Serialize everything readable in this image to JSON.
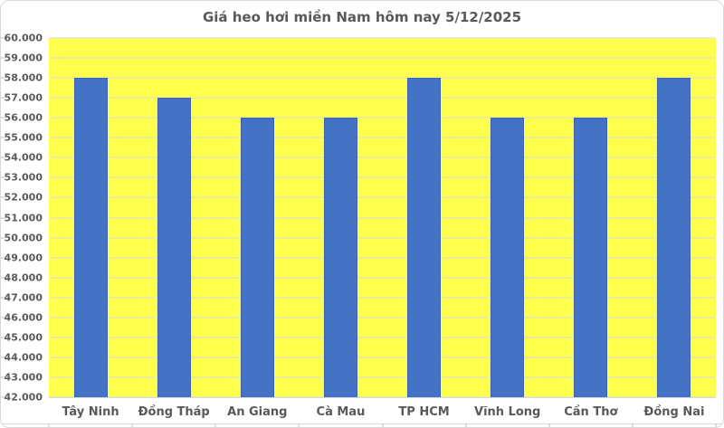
{
  "chart_data": {
    "type": "bar",
    "title": "Giá heo hơi miền Nam hôm nay 5/12/2025",
    "categories": [
      "Tây Ninh",
      "Đồng Tháp",
      "An Giang",
      "Cà Mau",
      "TP HCM",
      "Vĩnh Long",
      "Cần Thơ",
      "Đồng Nai"
    ],
    "values": [
      58000,
      57000,
      56000,
      56000,
      58000,
      56000,
      56000,
      58000
    ],
    "xlabel": "",
    "ylabel": "",
    "ylim": [
      42000,
      60000
    ],
    "ytick_step": 1000,
    "ytick_labels": [
      "60.000",
      "59.000",
      "58.000",
      "57.000",
      "56.000",
      "55.000",
      "54.000",
      "53.000",
      "52.000",
      "51.000",
      "50.000",
      "49.000",
      "48.000",
      "47.000",
      "46.000",
      "45.000",
      "44.000",
      "43.000",
      "42.000"
    ],
    "grid": true,
    "legend_position": "none",
    "colors": {
      "bar": "#4472C4",
      "bar_border": "#3A62AE",
      "plot_bg": "#FFFF4D",
      "chart_bg": "#FFFFFF",
      "gridline": "#D9D9D9",
      "axis_tick": "#BFBFBF",
      "text": "#595959"
    }
  }
}
